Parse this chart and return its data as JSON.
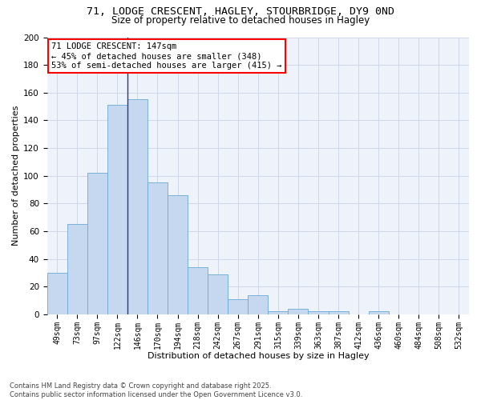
{
  "title_line1": "71, LODGE CRESCENT, HAGLEY, STOURBRIDGE, DY9 0ND",
  "title_line2": "Size of property relative to detached houses in Hagley",
  "xlabel": "Distribution of detached houses by size in Hagley",
  "ylabel": "Number of detached properties",
  "bar_color": "#c5d8f0",
  "bar_edge_color": "#6aaad4",
  "categories": [
    "49sqm",
    "73sqm",
    "97sqm",
    "122sqm",
    "146sqm",
    "170sqm",
    "194sqm",
    "218sqm",
    "242sqm",
    "267sqm",
    "291sqm",
    "315sqm",
    "339sqm",
    "363sqm",
    "387sqm",
    "412sqm",
    "436sqm",
    "460sqm",
    "484sqm",
    "508sqm",
    "532sqm"
  ],
  "values": [
    30,
    65,
    102,
    151,
    155,
    95,
    86,
    34,
    29,
    11,
    14,
    2,
    4,
    2,
    2,
    0,
    2,
    0,
    0,
    0,
    0
  ],
  "vline_index": 3,
  "annotation_text": "71 LODGE CRESCENT: 147sqm\n← 45% of detached houses are smaller (348)\n53% of semi-detached houses are larger (415) →",
  "annotation_box_color": "white",
  "annotation_box_edge_color": "red",
  "ylim": [
    0,
    200
  ],
  "yticks": [
    0,
    20,
    40,
    60,
    80,
    100,
    120,
    140,
    160,
    180,
    200
  ],
  "grid_color": "#d0d8e8",
  "background_color": "#eef2fa",
  "footer_text": "Contains HM Land Registry data © Crown copyright and database right 2025.\nContains public sector information licensed under the Open Government Licence v3.0.",
  "title_fontsize": 9.5,
  "subtitle_fontsize": 8.5,
  "axis_label_fontsize": 8,
  "tick_fontsize": 7,
  "annotation_fontsize": 7.5,
  "footer_fontsize": 6
}
